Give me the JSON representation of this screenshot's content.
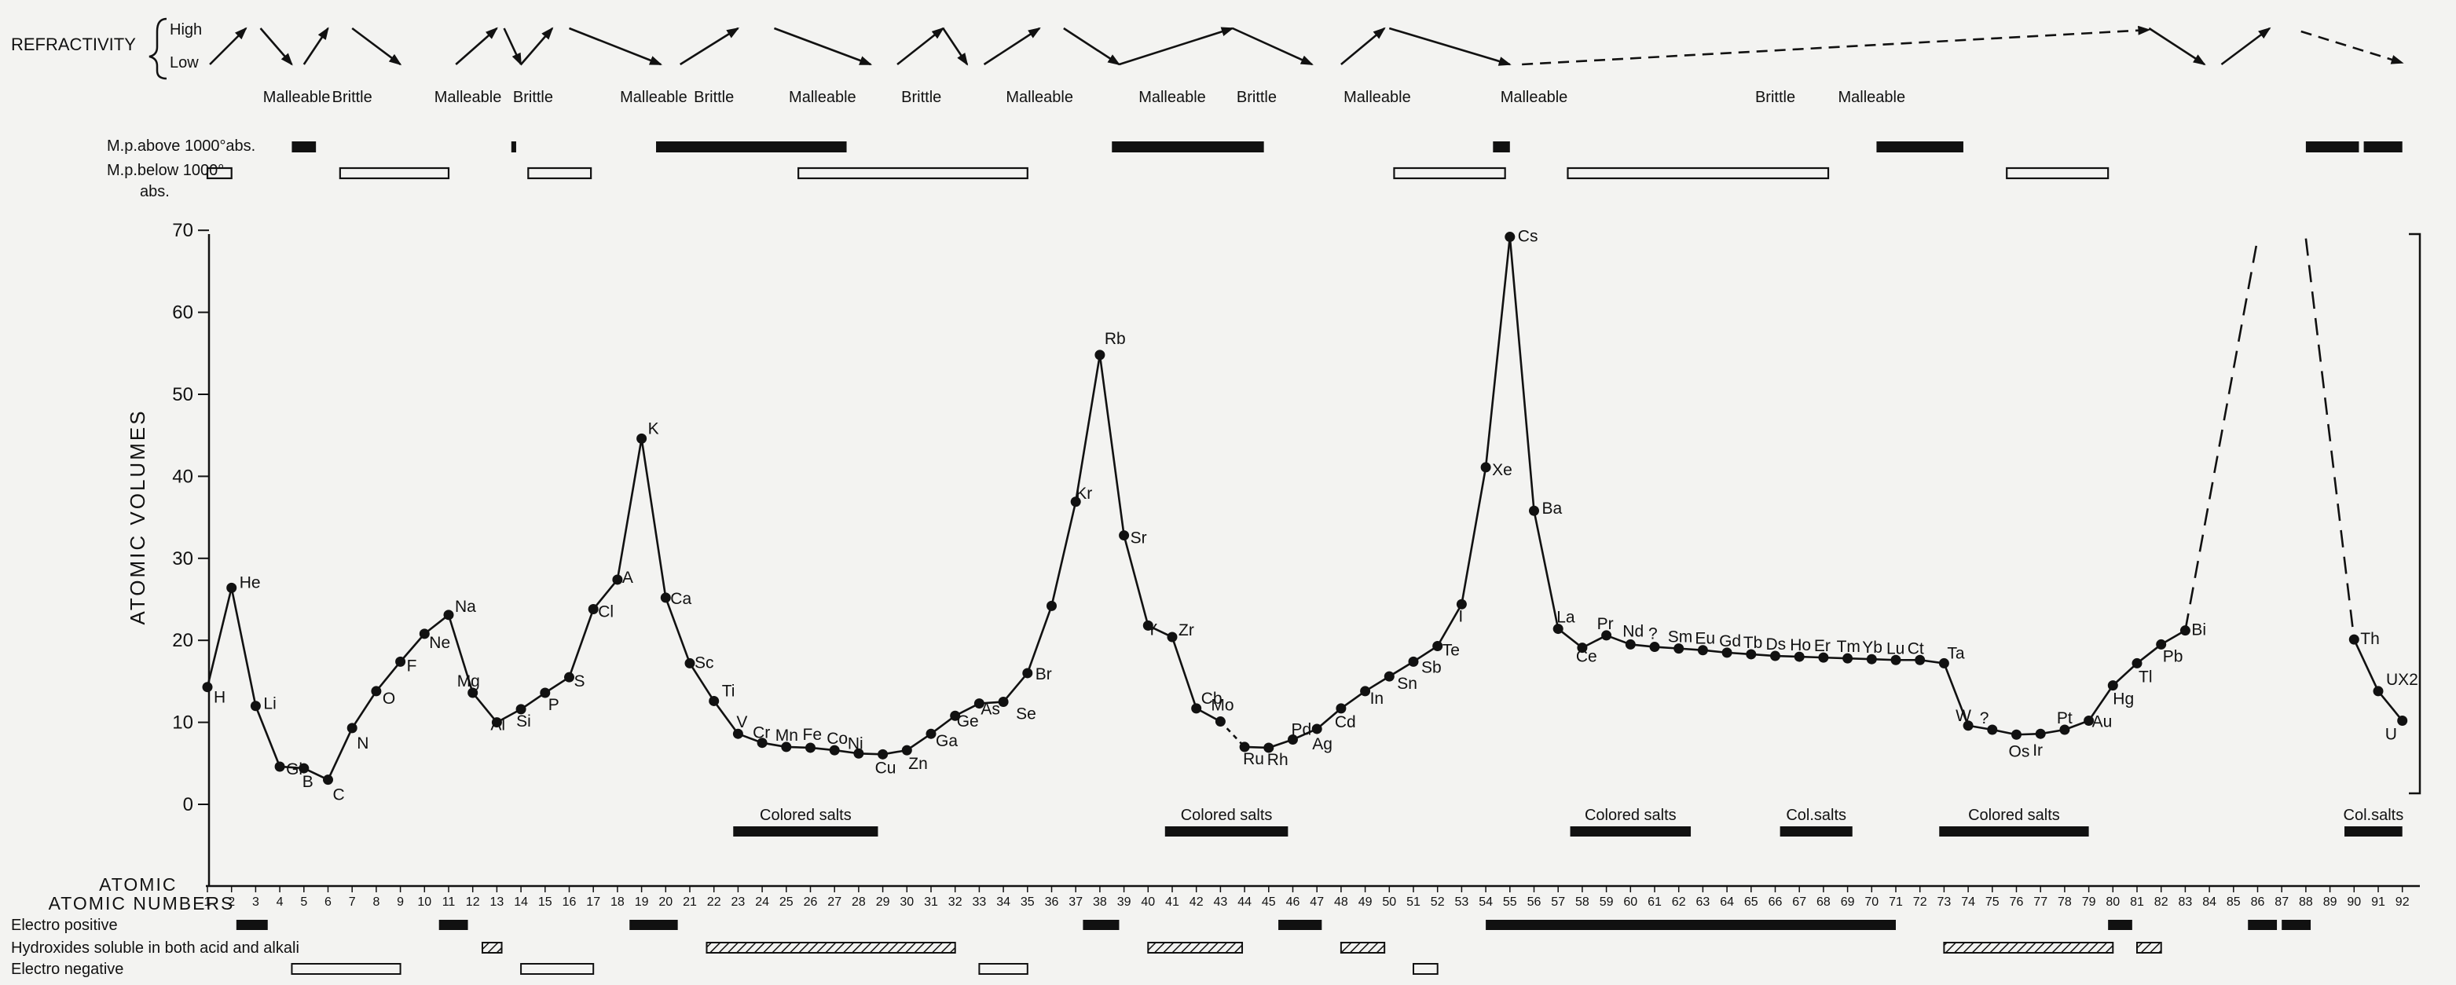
{
  "chart_data": {
    "type": "line",
    "xlabel": "ATOMIC NUMBERS",
    "ylabel": "ATOMIC VOLUMES",
    "xlim": [
      1,
      92
    ],
    "ylim": [
      0,
      70
    ],
    "yticks": [
      0,
      10,
      20,
      30,
      40,
      50,
      60,
      70
    ],
    "xticks": [
      1,
      2,
      3,
      4,
      5,
      6,
      7,
      8,
      9,
      10,
      11,
      12,
      13,
      14,
      15,
      16,
      17,
      18,
      19,
      20,
      21,
      22,
      23,
      24,
      25,
      26,
      27,
      28,
      29,
      30,
      31,
      32,
      33,
      34,
      35,
      36,
      37,
      38,
      39,
      40,
      41,
      42,
      43,
      44,
      45,
      46,
      47,
      48,
      49,
      50,
      51,
      52,
      53,
      54,
      55,
      56,
      57,
      58,
      59,
      60,
      61,
      62,
      63,
      64,
      65,
      66,
      67,
      68,
      69,
      70,
      71,
      72,
      73,
      74,
      75,
      76,
      77,
      78,
      79,
      80,
      81,
      82,
      83,
      84,
      85,
      86,
      87,
      88,
      89,
      90,
      91,
      92
    ],
    "series": [
      {
        "points": [
          {
            "x": 1,
            "y": 14.3,
            "label": "H"
          },
          {
            "x": 2,
            "y": 26.4,
            "label": "He"
          },
          {
            "x": 3,
            "y": 12.0,
            "label": "Li"
          },
          {
            "x": 4,
            "y": 4.6,
            "label": "Gl"
          },
          {
            "x": 5,
            "y": 4.4,
            "label": "B"
          },
          {
            "x": 6,
            "y": 3.0,
            "label": "C"
          },
          {
            "x": 7,
            "y": 9.3,
            "label": "N"
          },
          {
            "x": 8,
            "y": 13.8,
            "label": "O"
          },
          {
            "x": 9,
            "y": 17.4,
            "label": "F"
          },
          {
            "x": 10,
            "y": 20.8,
            "label": "Ne"
          },
          {
            "x": 11,
            "y": 23.1,
            "label": "Na"
          },
          {
            "x": 12,
            "y": 13.6,
            "label": "Mg"
          },
          {
            "x": 13,
            "y": 10.0,
            "label": "Al"
          },
          {
            "x": 14,
            "y": 11.6,
            "label": "Si"
          },
          {
            "x": 15,
            "y": 13.6,
            "label": "P"
          },
          {
            "x": 16,
            "y": 15.5,
            "label": "S"
          },
          {
            "x": 17,
            "y": 23.8,
            "label": "Cl"
          },
          {
            "x": 18,
            "y": 27.4,
            "label": "A"
          },
          {
            "x": 19,
            "y": 44.6,
            "label": "K"
          },
          {
            "x": 20,
            "y": 25.2,
            "label": "Ca"
          },
          {
            "x": 21,
            "y": 17.2,
            "label": "Sc"
          },
          {
            "x": 22,
            "y": 12.6,
            "label": "Ti"
          },
          {
            "x": 23,
            "y": 8.6,
            "label": "V"
          },
          {
            "x": 24,
            "y": 7.5,
            "label": "Cr"
          },
          {
            "x": 25,
            "y": 7.0,
            "label": "Mn"
          },
          {
            "x": 26,
            "y": 6.9,
            "label": "Fe"
          },
          {
            "x": 27,
            "y": 6.6,
            "label": "Co"
          },
          {
            "x": 28,
            "y": 6.2,
            "label": "Ni"
          },
          {
            "x": 29,
            "y": 6.1,
            "label": "Cu"
          },
          {
            "x": 30,
            "y": 6.6,
            "label": "Zn"
          },
          {
            "x": 31,
            "y": 8.6,
            "label": "Ga"
          },
          {
            "x": 32,
            "y": 10.8,
            "label": "Ge"
          },
          {
            "x": 33,
            "y": 12.3,
            "label": "As"
          },
          {
            "x": 34,
            "y": 12.5,
            "label": "Se"
          },
          {
            "x": 35,
            "y": 16.0,
            "label": "Br"
          },
          {
            "x": 36,
            "y": 24.2,
            "label": ""
          },
          {
            "x": 37,
            "y": 36.9,
            "label": "Kr"
          },
          {
            "x": 38,
            "y": 54.8,
            "label": "Rb"
          },
          {
            "x": 39,
            "y": 32.8,
            "label": "Sr"
          },
          {
            "x": 40,
            "y": 21.8,
            "label": "Y"
          },
          {
            "x": 41,
            "y": 20.4,
            "label": "Zr"
          },
          {
            "x": 42,
            "y": 11.7,
            "label": "Cb"
          },
          {
            "x": 43,
            "y": 10.1,
            "label": "Mo"
          },
          {
            "x": 44,
            "y": 7.0,
            "label": "Ru"
          },
          {
            "x": 45,
            "y": 6.9,
            "label": "Rh"
          },
          {
            "x": 46,
            "y": 7.9,
            "label": "Pd"
          },
          {
            "x": 47,
            "y": 9.2,
            "label": "Ag"
          },
          {
            "x": 48,
            "y": 11.7,
            "label": "Cd"
          },
          {
            "x": 49,
            "y": 13.8,
            "label": "In"
          },
          {
            "x": 50,
            "y": 15.6,
            "label": "Sn"
          },
          {
            "x": 51,
            "y": 17.4,
            "label": "Sb"
          },
          {
            "x": 52,
            "y": 19.3,
            "label": "Te"
          },
          {
            "x": 53,
            "y": 24.4,
            "label": "I"
          },
          {
            "x": 54,
            "y": 41.1,
            "label": "Xe"
          },
          {
            "x": 55,
            "y": 69.2,
            "label": "Cs"
          },
          {
            "x": 56,
            "y": 35.8,
            "label": "Ba"
          },
          {
            "x": 57,
            "y": 21.4,
            "label": "La"
          },
          {
            "x": 58,
            "y": 19.1,
            "label": "Ce"
          },
          {
            "x": 59,
            "y": 20.6,
            "label": "Pr"
          },
          {
            "x": 60,
            "y": 19.5,
            "label": "Nd"
          },
          {
            "x": 61,
            "y": 19.2,
            "label": "?"
          },
          {
            "x": 62,
            "y": 19.0,
            "label": "Sm"
          },
          {
            "x": 63,
            "y": 18.8,
            "label": "Eu"
          },
          {
            "x": 64,
            "y": 18.5,
            "label": "Gd"
          },
          {
            "x": 65,
            "y": 18.3,
            "label": "Tb"
          },
          {
            "x": 66,
            "y": 18.1,
            "label": "Ds"
          },
          {
            "x": 67,
            "y": 18.0,
            "label": "Ho"
          },
          {
            "x": 68,
            "y": 17.9,
            "label": "Er"
          },
          {
            "x": 69,
            "y": 17.8,
            "label": "Tm"
          },
          {
            "x": 70,
            "y": 17.7,
            "label": "Yb"
          },
          {
            "x": 71,
            "y": 17.6,
            "label": "Lu"
          },
          {
            "x": 72,
            "y": 17.6,
            "label": "Ct"
          },
          {
            "x": 73,
            "y": 17.2,
            "label": "Ta"
          },
          {
            "x": 74,
            "y": 9.6,
            "label": "W"
          },
          {
            "x": 75,
            "y": 9.1,
            "label": "?"
          },
          {
            "x": 76,
            "y": 8.5,
            "label": "Os"
          },
          {
            "x": 77,
            "y": 8.6,
            "label": "Ir"
          },
          {
            "x": 78,
            "y": 9.1,
            "label": "Pt"
          },
          {
            "x": 79,
            "y": 10.2,
            "label": "Au"
          },
          {
            "x": 80,
            "y": 14.5,
            "label": "Hg"
          },
          {
            "x": 81,
            "y": 17.2,
            "label": "Tl"
          },
          {
            "x": 82,
            "y": 19.5,
            "label": "Pb"
          },
          {
            "x": 83,
            "y": 21.2,
            "label": "Bi"
          },
          {
            "x": 90,
            "y": 20.1,
            "label": "Th"
          },
          {
            "x": 91,
            "y": 13.8,
            "label": "UX2"
          },
          {
            "x": 92,
            "y": 10.2,
            "label": "U"
          }
        ],
        "dashed_after": [
          {
            "from": [
              83,
              21.2
            ],
            "to": [
              86,
              69.0
            ]
          },
          {
            "from": [
              88,
              69.0
            ],
            "to": [
              90,
              20.1
            ]
          },
          {
            "from": [
              43,
              10.1
            ],
            "to": [
              44,
              7.0
            ]
          },
          {
            "from": [
              60,
              19.5
            ],
            "to": [
              72,
              17.6
            ]
          }
        ]
      }
    ],
    "refractivity": {
      "label": "REFRACTIVITY",
      "high": "High",
      "low": "Low",
      "arrows": [
        {
          "from": 1.1,
          "to": 2.6,
          "dir": "up"
        },
        {
          "from": 3.2,
          "to": 4.5,
          "dir": "down"
        },
        {
          "from": 5.0,
          "to": 6.0,
          "dir": "up"
        },
        {
          "from": 7.0,
          "to": 9.0,
          "dir": "down"
        },
        {
          "from": 11.3,
          "to": 13.0,
          "dir": "up"
        },
        {
          "from": 13.3,
          "to": 14.0,
          "dir": "down"
        },
        {
          "from": 14.0,
          "to": 15.3,
          "dir": "up"
        },
        {
          "from": 16.0,
          "to": 19.8,
          "dir": "down"
        },
        {
          "from": 20.6,
          "to": 23.0,
          "dir": "up"
        },
        {
          "from": 24.5,
          "to": 28.5,
          "dir": "down"
        },
        {
          "from": 29.6,
          "to": 31.5,
          "dir": "up"
        },
        {
          "from": 31.5,
          "to": 32.5,
          "dir": "down"
        },
        {
          "from": 33.2,
          "to": 35.5,
          "dir": "up"
        },
        {
          "from": 36.5,
          "to": 38.8,
          "dir": "down"
        },
        {
          "from": 38.8,
          "to": 43.5,
          "dir": "up"
        },
        {
          "from": 43.5,
          "to": 46.8,
          "dir": "down"
        },
        {
          "from": 48.0,
          "to": 49.8,
          "dir": "up"
        },
        {
          "from": 50.0,
          "to": 55.0,
          "dir": "down"
        },
        {
          "from": 55.5,
          "to": 81.5,
          "dir": "up",
          "dashed": true
        },
        {
          "from": 81.5,
          "to": 83.8,
          "dir": "down"
        },
        {
          "from": 84.5,
          "to": 86.5,
          "dir": "up"
        },
        {
          "from": 87.8,
          "to": 92.0,
          "dir": "down",
          "dashed": true
        }
      ],
      "labels": [
        {
          "x": 4.7,
          "text": "Malleable"
        },
        {
          "x": 7.0,
          "text": "Brittle"
        },
        {
          "x": 11.8,
          "text": "Malleable"
        },
        {
          "x": 14.5,
          "text": "Brittle"
        },
        {
          "x": 19.5,
          "text": "Malleable"
        },
        {
          "x": 22.0,
          "text": "Brittle"
        },
        {
          "x": 26.5,
          "text": "Malleable"
        },
        {
          "x": 30.6,
          "text": "Brittle"
        },
        {
          "x": 35.5,
          "text": "Malleable"
        },
        {
          "x": 41.0,
          "text": "Malleable"
        },
        {
          "x": 44.5,
          "text": "Brittle"
        },
        {
          "x": 49.5,
          "text": "Malleable"
        },
        {
          "x": 56.0,
          "text": "Malleable"
        },
        {
          "x": 66.0,
          "text": "Brittle"
        },
        {
          "x": 70.0,
          "text": "Malleable"
        }
      ]
    },
    "melting_point": {
      "above_label": "M.p.above 1000°abs.",
      "below_label": "M.p.below 1000°",
      "below_label_2": "abs.",
      "above": [
        [
          4.5,
          5.5
        ],
        [
          13.6,
          13.8
        ],
        [
          19.6,
          27.5
        ],
        [
          38.5,
          44.8
        ],
        [
          54.3,
          55.0
        ],
        [
          70.2,
          73.8
        ],
        [
          88.0,
          90.2
        ],
        [
          90.4,
          92.0
        ]
      ],
      "below": [
        [
          1.0,
          2.0
        ],
        [
          6.5,
          11.0
        ],
        [
          14.3,
          16.9
        ],
        [
          25.5,
          35.0
        ],
        [
          50.2,
          54.8
        ],
        [
          57.4,
          68.2
        ],
        [
          75.6,
          79.8
        ]
      ]
    },
    "colored_salts": [
      {
        "x0": 22.8,
        "x1": 28.8,
        "text": "Colored salts"
      },
      {
        "x0": 40.7,
        "x1": 45.8,
        "text": "Colored salts"
      },
      {
        "x0": 57.5,
        "x1": 62.5,
        "text": "Colored salts"
      },
      {
        "x0": 66.2,
        "x1": 69.2,
        "text": "Col.salts"
      },
      {
        "x0": 72.8,
        "x1": 79.0,
        "text": "Colored  salts"
      },
      {
        "x0": 89.6,
        "x1": 92.0,
        "text": "Col.salts"
      }
    ],
    "property_bars": [
      {
        "label": "Electro positive",
        "type": "solid",
        "segments": [
          [
            2.2,
            3.5
          ],
          [
            10.6,
            11.8
          ],
          [
            18.5,
            20.5
          ],
          [
            37.3,
            38.8
          ],
          [
            45.4,
            47.2
          ],
          [
            54.0,
            71.0
          ],
          [
            79.8,
            80.8
          ],
          [
            85.6,
            86.8
          ],
          [
            87.0,
            88.2
          ]
        ]
      },
      {
        "label": "Hydroxides soluble in both acid and alkali",
        "type": "hatched",
        "segments": [
          [
            12.4,
            13.2
          ],
          [
            21.7,
            32.0
          ],
          [
            40.0,
            43.9
          ],
          [
            48.0,
            49.8
          ],
          [
            73.0,
            80.0
          ],
          [
            81.0,
            82.0
          ]
        ]
      },
      {
        "label": "Electro negative",
        "type": "open",
        "segments": [
          [
            4.5,
            9.0
          ],
          [
            14.0,
            17.0
          ],
          [
            33.0,
            35.0
          ],
          [
            51.0,
            52.0
          ]
        ]
      }
    ]
  }
}
